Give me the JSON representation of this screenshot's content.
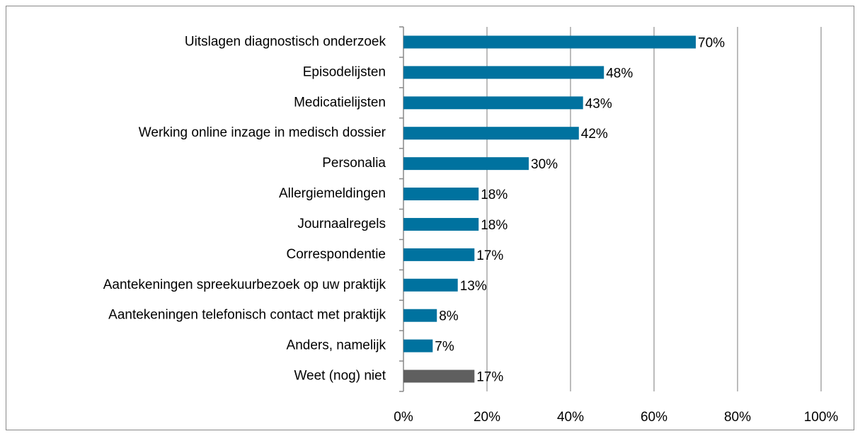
{
  "chart_data": {
    "type": "hbar",
    "categories": [
      "Uitslagen diagnostisch onderzoek",
      "Episodelijsten",
      "Medicatielijsten",
      "Werking online inzage in medisch dossier",
      "Personalia",
      "Allergiemeldingen",
      "Journaalregels",
      "Correspondentie",
      "Aantekeningen spreekuurbezoek op uw praktijk",
      "Aantekeningen telefonisch contact met praktijk",
      "Anders, namelijk",
      "Weet (nog) niet"
    ],
    "values": [
      70,
      48,
      43,
      42,
      30,
      18,
      18,
      17,
      13,
      8,
      7,
      17
    ],
    "value_labels": [
      "70%",
      "48%",
      "43%",
      "42%",
      "30%",
      "18%",
      "18%",
      "17%",
      "13%",
      "8%",
      "7%",
      "17%"
    ],
    "colors": [
      "#00729f",
      "#00729f",
      "#00729f",
      "#00729f",
      "#00729f",
      "#00729f",
      "#00729f",
      "#00729f",
      "#00729f",
      "#00729f",
      "#00729f",
      "#5f5f5f"
    ],
    "xlim": [
      0,
      100
    ],
    "xticks": [
      {
        "value": 0,
        "label": "0%"
      },
      {
        "value": 20,
        "label": "20%"
      },
      {
        "value": 40,
        "label": "40%"
      },
      {
        "value": 60,
        "label": "60%"
      },
      {
        "value": 80,
        "label": "80%"
      },
      {
        "value": 100,
        "label": "100%"
      }
    ],
    "grid": true
  }
}
